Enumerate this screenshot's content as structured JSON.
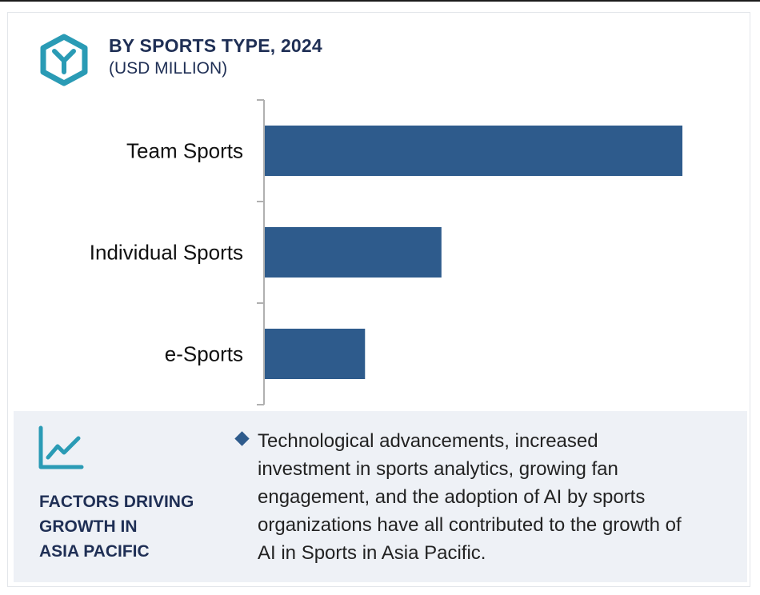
{
  "header": {
    "title": "BY SPORTS TYPE, 2024",
    "subtitle": "(USD MILLION)"
  },
  "chart_data": {
    "type": "bar",
    "orientation": "horizontal",
    "title": "BY SPORTS TYPE, 2024",
    "subtitle": "(USD MILLION)",
    "categories": [
      "Team Sports",
      "Individual Sports",
      "e-Sports"
    ],
    "values": [
      100,
      42.3,
      24.0
    ],
    "bar_color": "#2e5b8c",
    "axis_color": "#b0b0b0",
    "grid": false,
    "value_axis_visible": false,
    "xlim": [
      0,
      100
    ]
  },
  "factors": {
    "title_lines": [
      "FACTORS DRIVING",
      "GROWTH IN",
      "ASIA PACIFIC"
    ],
    "text_lines": [
      "Technological advancements, increased",
      "investment in sports analytics, growing fan",
      "engagement, and the adoption of AI by sports",
      "organizations have all contributed to the growth of",
      "AI in Sports in Asia Pacific."
    ]
  },
  "colors": {
    "title": "#1f2f55",
    "accent": "#2e5b8c",
    "logo": "#2a9bb5",
    "panel_bg": "#eef1f6"
  },
  "icons": {
    "logo": "hexagon-y-logo-icon",
    "trend": "trend-chart-icon",
    "bullet": "diamond-bullet-icon"
  }
}
